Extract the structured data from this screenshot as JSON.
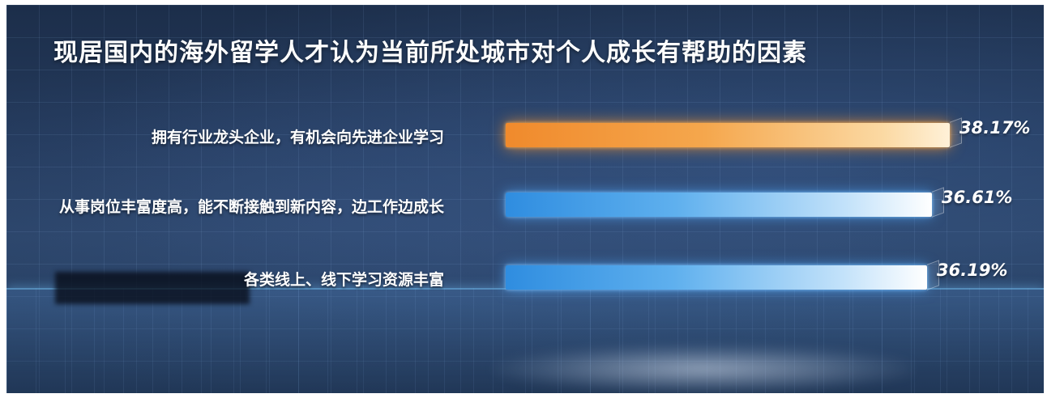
{
  "chart_data": {
    "type": "bar",
    "orientation": "horizontal",
    "title": "现居国内的海外留学人才认为当前所处城市对个人成长有帮助的因素",
    "categories": [
      "拥有行业龙头企业，有机会向先进企业学习",
      "从事岗位丰富度高，能不断接触到新内容，边工作边成长",
      "各类线上、线下学习资源丰富"
    ],
    "values": [
      38.17,
      36.61,
      36.19
    ],
    "value_labels": [
      "38.17%",
      "36.61%",
      "36.19%"
    ],
    "unit": "%",
    "bar_colors": [
      "#f5a74d",
      "#5fb0ee",
      "#5fb0ee"
    ],
    "xlim": [
      0,
      38.17
    ],
    "grid": false,
    "legend": "none"
  }
}
